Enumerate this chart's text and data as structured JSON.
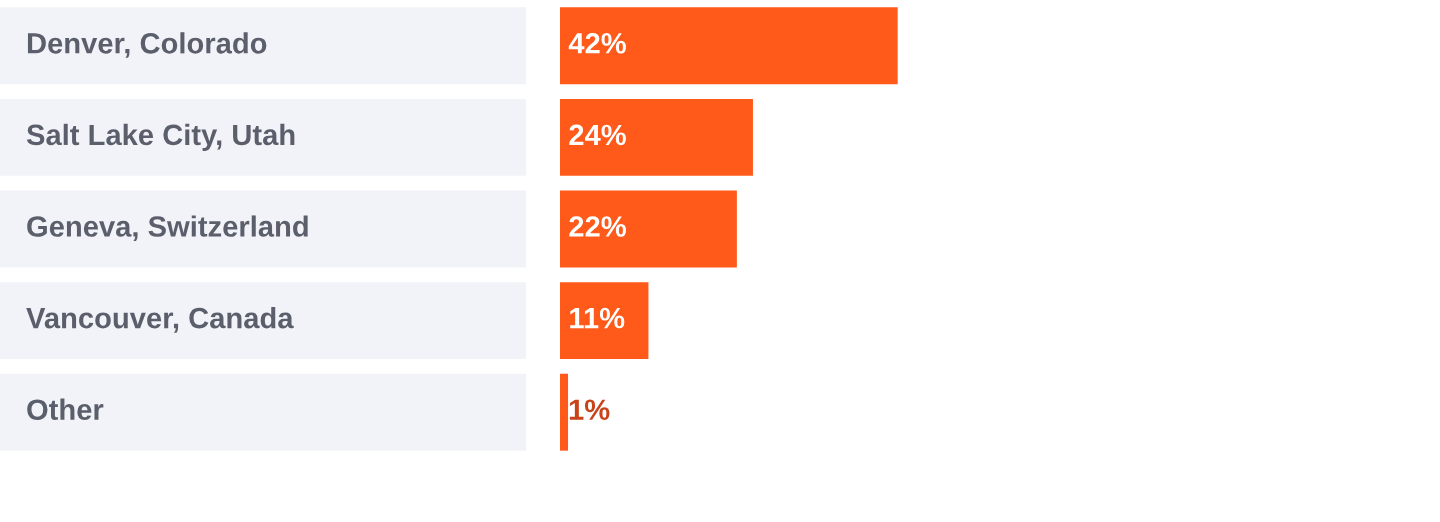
{
  "chart_data": {
    "type": "bar",
    "orientation": "horizontal",
    "categories": [
      "Denver, Colorado",
      "Salt Lake City, Utah",
      "Geneva, Switzerland",
      "Vancouver, Canada",
      "Other"
    ],
    "values": [
      42,
      24,
      22,
      11,
      1
    ],
    "value_labels": [
      "42%",
      "24%",
      "22%",
      "11%",
      "1%"
    ],
    "color": "#ff5a1a"
  }
}
